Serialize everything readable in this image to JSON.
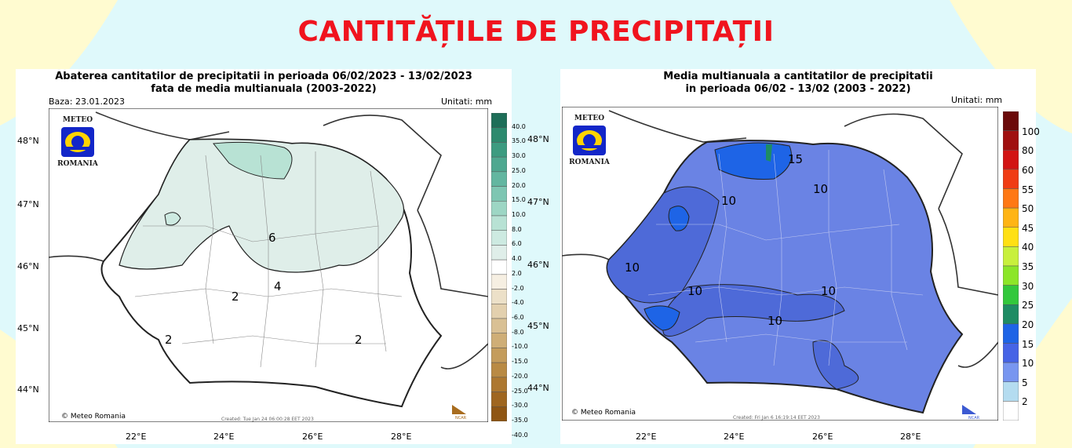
{
  "page": {
    "title": "CANTITĂȚILE DE PRECIPITAȚII",
    "colors": {
      "title": "#f0141e",
      "bg_yellow": "#fffbd0",
      "bg_cyan": "#dff9fb"
    }
  },
  "left_map": {
    "title_line1": "Abaterea cantitatilor de precipitatii in perioada 06/02/2023 - 13/02/2023",
    "title_line2": "fata de media multianuala (2003-2022)",
    "base_date": "Baza: 23.01.2023",
    "units": "Unitati: mm",
    "credit": "© Meteo Romania",
    "created": "Created: Tue Jan 24 06:00:28 EET 2023",
    "ncar": "NCAR",
    "logo_top": "METEO",
    "logo_bottom": "ROMANIA",
    "lat_labels": [
      "48°N",
      "47°N",
      "46°N",
      "45°N",
      "44°N"
    ],
    "lon_labels": [
      "22°E",
      "24°E",
      "26°E",
      "28°E"
    ],
    "contour_labels": [
      "2",
      "2",
      "2",
      "4",
      "6",
      "2"
    ],
    "colorbar": {
      "labels": [
        "40.0",
        "35.0",
        "30.0",
        "25.0",
        "20.0",
        "15.0",
        "10.0",
        "8.0",
        "6.0",
        "4.0",
        "2.0",
        "-2.0",
        "-4.0",
        "-6.0",
        "-8.0",
        "-10.0",
        "-15.0",
        "-20.0",
        "-25.0",
        "-30.0",
        "-35.0",
        "-40.0"
      ],
      "colors": [
        "#1e6e58",
        "#2d8a6e",
        "#3d9b80",
        "#4fa890",
        "#63b6a0",
        "#7ec6b2",
        "#9dd6c4",
        "#b8e2d4",
        "#cdeae1",
        "#dfeee9",
        "#ffffff",
        "#f6efe2",
        "#ece0c8",
        "#e3d0ae",
        "#d9c094",
        "#cfae77",
        "#c49c5c",
        "#b98a44",
        "#ad7831",
        "#9f6620",
        "#8f5614"
      ]
    }
  },
  "right_map": {
    "title_line1": "Media multianuala a cantitatilor de precipitatii",
    "title_line2": "in perioada 06/02 - 13/02 (2003 - 2022)",
    "units": "Unitati: mm",
    "credit": "© Meteo Romania",
    "created": "Created: Fri Jan  6 16:19:14 EET 2023",
    "ncar": "NCAR",
    "logo_top": "METEO",
    "logo_bottom": "ROMANIA",
    "lat_labels": [
      "48°N",
      "47°N",
      "46°N",
      "45°N",
      "44°N"
    ],
    "lon_labels": [
      "22°E",
      "24°E",
      "26°E",
      "28°E"
    ],
    "contour_labels": [
      "15",
      "10",
      "10",
      "10",
      "10",
      "10",
      "10"
    ],
    "colorbar": {
      "labels": [
        "100",
        "80",
        "60",
        "55",
        "50",
        "45",
        "40",
        "35",
        "30",
        "25",
        "20",
        "15",
        "10",
        "5",
        "2"
      ],
      "colors": [
        "#6b0a0a",
        "#a01010",
        "#d21414",
        "#f03c14",
        "#ff7814",
        "#ffb414",
        "#ffe014",
        "#c8f03c",
        "#8ce628",
        "#32c83c",
        "#1e8c64",
        "#1e64e6",
        "#4664e6",
        "#7896f0",
        "#b4dcf0",
        "#ffffff"
      ]
    }
  }
}
